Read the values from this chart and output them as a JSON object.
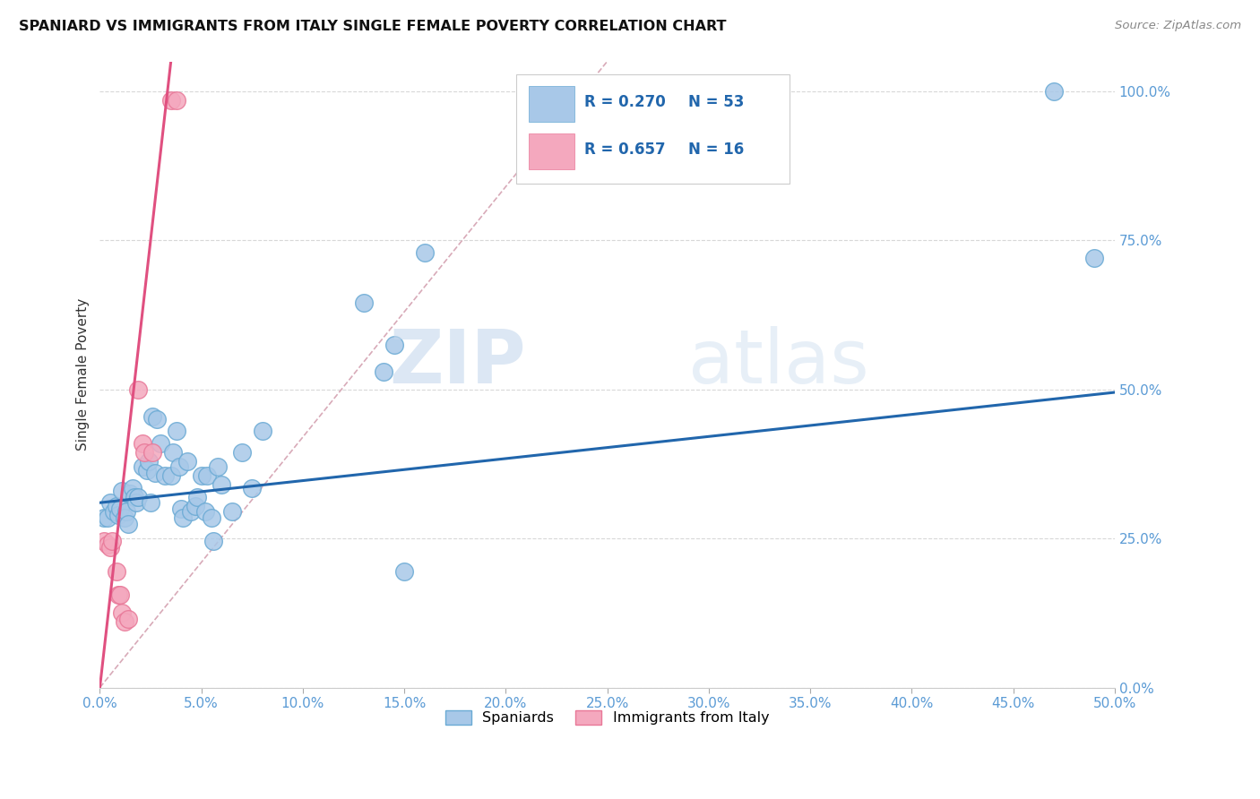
{
  "title": "SPANIARD VS IMMIGRANTS FROM ITALY SINGLE FEMALE POVERTY CORRELATION CHART",
  "source": "Source: ZipAtlas.com",
  "ylabel_label": "Single Female Poverty",
  "legend_label1": "Spaniards",
  "legend_label2": "Immigrants from Italy",
  "R1": 0.27,
  "N1": 53,
  "R2": 0.657,
  "N2": 16,
  "watermark_zip": "ZIP",
  "watermark_atlas": "atlas",
  "blue_color": "#a8c8e8",
  "pink_color": "#f4a8be",
  "blue_edge_color": "#6aaad4",
  "pink_edge_color": "#e87898",
  "blue_line_color": "#2166ac",
  "pink_line_color": "#e05080",
  "blue_scatter": [
    [
      0.2,
      28.5
    ],
    [
      0.4,
      28.5
    ],
    [
      0.5,
      31.0
    ],
    [
      0.7,
      29.5
    ],
    [
      0.8,
      30.5
    ],
    [
      0.9,
      29.0
    ],
    [
      1.0,
      30.0
    ],
    [
      1.1,
      33.0
    ],
    [
      1.2,
      28.5
    ],
    [
      1.3,
      29.5
    ],
    [
      1.4,
      27.5
    ],
    [
      1.5,
      32.5
    ],
    [
      1.6,
      33.5
    ],
    [
      1.7,
      32.0
    ],
    [
      1.8,
      31.0
    ],
    [
      1.9,
      32.0
    ],
    [
      2.1,
      37.0
    ],
    [
      2.3,
      36.5
    ],
    [
      2.4,
      38.0
    ],
    [
      2.5,
      31.0
    ],
    [
      2.6,
      45.5
    ],
    [
      2.7,
      36.0
    ],
    [
      2.8,
      45.0
    ],
    [
      3.0,
      41.0
    ],
    [
      3.2,
      35.5
    ],
    [
      3.5,
      35.5
    ],
    [
      3.6,
      39.5
    ],
    [
      3.8,
      43.0
    ],
    [
      3.9,
      37.0
    ],
    [
      4.0,
      30.0
    ],
    [
      4.1,
      28.5
    ],
    [
      4.3,
      38.0
    ],
    [
      4.5,
      29.5
    ],
    [
      4.7,
      30.5
    ],
    [
      4.8,
      32.0
    ],
    [
      5.0,
      35.5
    ],
    [
      5.2,
      29.5
    ],
    [
      5.3,
      35.5
    ],
    [
      5.5,
      28.5
    ],
    [
      5.6,
      24.5
    ],
    [
      5.8,
      37.0
    ],
    [
      6.0,
      34.0
    ],
    [
      6.5,
      29.5
    ],
    [
      7.0,
      39.5
    ],
    [
      7.5,
      33.5
    ],
    [
      8.0,
      43.0
    ],
    [
      13.0,
      64.5
    ],
    [
      14.0,
      53.0
    ],
    [
      14.5,
      57.5
    ],
    [
      15.0,
      19.5
    ],
    [
      16.0,
      73.0
    ],
    [
      47.0,
      100.0
    ],
    [
      49.0,
      72.0
    ]
  ],
  "pink_scatter": [
    [
      0.2,
      24.5
    ],
    [
      0.4,
      24.0
    ],
    [
      0.5,
      23.5
    ],
    [
      0.6,
      24.5
    ],
    [
      0.8,
      19.5
    ],
    [
      0.9,
      15.5
    ],
    [
      1.0,
      15.5
    ],
    [
      1.1,
      12.5
    ],
    [
      1.2,
      11.0
    ],
    [
      1.4,
      11.5
    ],
    [
      1.9,
      50.0
    ],
    [
      2.1,
      41.0
    ],
    [
      2.2,
      39.5
    ],
    [
      2.6,
      39.5
    ],
    [
      3.5,
      98.5
    ],
    [
      3.8,
      98.5
    ]
  ],
  "xmin": 0.0,
  "xmax": 50.0,
  "ymin": 0.0,
  "ymax": 105.0,
  "blue_trend": [
    0.0,
    50.0,
    31.0,
    49.5
  ],
  "pink_trend_solid": [
    0.0,
    3.5,
    0.0,
    105.0
  ],
  "pink_trend_dashed": [
    0.0,
    25.0,
    0.0,
    105.0
  ],
  "x_tick_vals": [
    0.0,
    5.0,
    10.0,
    15.0,
    20.0,
    25.0,
    30.0,
    35.0,
    40.0,
    45.0,
    50.0
  ],
  "y_tick_vals": [
    0.0,
    25.0,
    50.0,
    75.0,
    100.0
  ],
  "grid_color": "#d8d8d8",
  "bg_color": "#ffffff"
}
